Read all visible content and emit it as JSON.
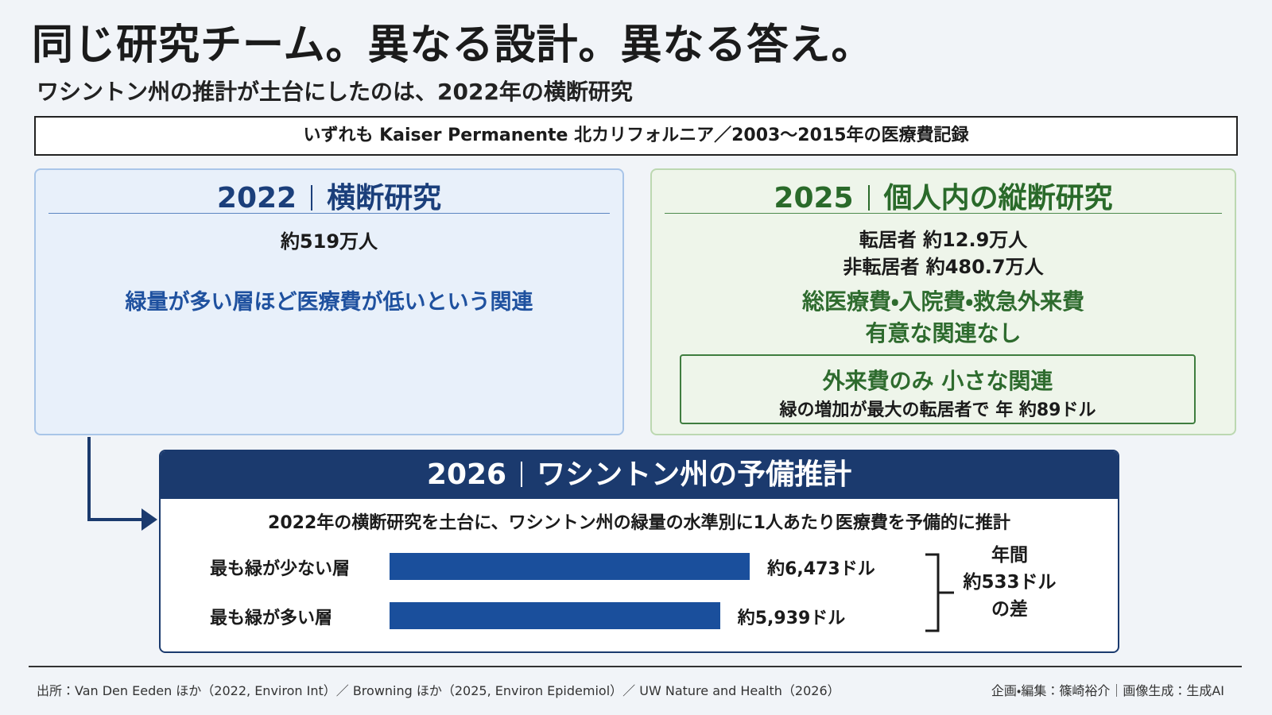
{
  "header": {
    "title": "同じ研究チーム。異なる設計。異なる答え。",
    "subtitle": "ワシントン州の推計が土台にしたのは、2022年の横断研究"
  },
  "banner": "いずれも Kaiser Permanente 北カリフォルニア／2003〜2015年の医療費記録",
  "left": {
    "year": "2022",
    "label": "横断研究",
    "population": "約519万人",
    "finding": "緑量が多い層ほど医療費が低いという関連"
  },
  "right": {
    "year": "2025",
    "label": "個人内の縦断研究",
    "population": [
      "転居者 約12.9万人",
      "非転居者 約480.7万人"
    ],
    "finding": [
      "総医療費・入院費・救急外来費",
      "有意な関連なし"
    ],
    "note": {
      "title": "外来費のみ 小さな関連",
      "text": "緑の増加が最大の転居者で 年 約89ドル"
    }
  },
  "bottom": {
    "year": "2026",
    "label": "ワシントン州の予備推計",
    "description": "2022年の横断研究を土台に、ワシントン州の緑量の水準別に1人あたり医療費を予備的に推計",
    "bars": [
      {
        "label": "最も緑が少ない層",
        "value": 6473,
        "value_label": "約6,473ドル"
      },
      {
        "label": "最も緑が多い層",
        "value": 5939,
        "value_label": "約5,939ドル"
      }
    ],
    "difference": [
      "年間",
      "約533ドル",
      "の差"
    ]
  },
  "footer": {
    "source": "出所：Van Den Eeden ほか（2022, Environ Int）／ Browning ほか（2025, Environ Epidemiol）／ UW Nature and Health（2026）",
    "credit": "企画・編集：篠崎裕介｜画像生成：生成AI"
  }
}
